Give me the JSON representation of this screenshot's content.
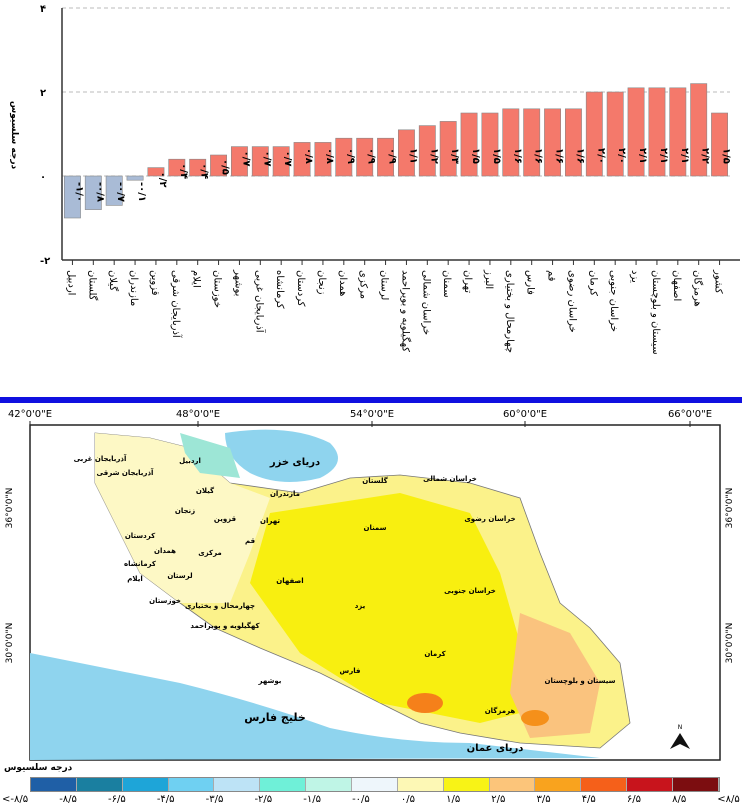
{
  "chart_data": {
    "type": "bar",
    "ylabel": "درجه سلسیوس",
    "ylim": [
      -2,
      4
    ],
    "yticks": [
      "۴",
      "۲",
      "۰",
      "-۲"
    ],
    "ytick_values": [
      4,
      2,
      0,
      -2
    ],
    "grid": "horizontal dashed",
    "colors": {
      "positive": "#f4796b",
      "negative": "#a9bbd6"
    },
    "categories": [
      "اردبیل",
      "گلستان",
      "گیلان",
      "مازندران",
      "قزوین",
      "آذربایجان شرقی",
      "ایلام",
      "خوزستان",
      "بوشهر",
      "آذربایجان غربی",
      "کرمانشاه",
      "کردستان",
      "زنجان",
      "همدان",
      "مرکزی",
      "لرستان",
      "کهگیلویه و بویراحمد",
      "خراسان شمالی",
      "سمنان",
      "تهران",
      "البرز",
      "چهارمحال و بختیاری",
      "فارس",
      "قم",
      "خراسان رضوی",
      "کرمان",
      "خراسان جنوبی",
      "یزد",
      "سیستان و بلوچستان",
      "اصفهان",
      "هرمزگان",
      "کشور"
    ],
    "values": [
      -1.0,
      -0.8,
      -0.7,
      -0.1,
      0.2,
      0.4,
      0.4,
      0.5,
      0.7,
      0.7,
      0.7,
      0.8,
      0.8,
      0.9,
      0.9,
      0.9,
      1.1,
      1.2,
      1.3,
      1.5,
      1.5,
      1.6,
      1.6,
      1.6,
      1.6,
      2.0,
      2.0,
      2.1,
      2.1,
      2.1,
      2.2,
      1.5
    ],
    "value_labels": [
      "-۱/۰",
      "-۰/۸",
      "-۰/۷",
      "-۰/۱",
      "۰/۲",
      "۰/۴",
      "۰/۴",
      "۰/۵",
      "۰/۷",
      "۰/۷",
      "۰/۷",
      "۰/۸",
      "۰/۸",
      "۰/۹",
      "۰/۹",
      "۰/۹",
      "۱/۱",
      "۱/۲",
      "۱/۳",
      "۱/۵",
      "۱/۵",
      "۱/۶",
      "۱/۶",
      "۱/۶",
      "۱/۶",
      "۲/۰",
      "۲/۰",
      "۲/۱",
      "۲/۱",
      "۲/۱",
      "۲/۲",
      "۱/۵"
    ]
  },
  "map": {
    "lon_labels": [
      "42°0'0\"E",
      "48°0'0\"E",
      "54°0'0\"E",
      "60°0'0\"E",
      "66°0'0\"E"
    ],
    "lat_labels": [
      "36°0'0\"N",
      "30°0'0\"N"
    ],
    "seas": {
      "caspian": "دریای خزر",
      "gulf": "خلیج فارس",
      "oman": "دریای عمان"
    },
    "north_label": "N",
    "provinces": [
      {
        "name": "آذربایجان غربی"
      },
      {
        "name": "آذربایجان شرقی"
      },
      {
        "name": "اردبیل"
      },
      {
        "name": "گیلان"
      },
      {
        "name": "زنجان"
      },
      {
        "name": "قزوین"
      },
      {
        "name": "مازندران"
      },
      {
        "name": "گلستان"
      },
      {
        "name": "خراسان شمالی"
      },
      {
        "name": "خراسان رضوی"
      },
      {
        "name": "سمنان"
      },
      {
        "name": "تهران"
      },
      {
        "name": "کردستان"
      },
      {
        "name": "همدان"
      },
      {
        "name": "کرمانشاه"
      },
      {
        "name": "مرکزی"
      },
      {
        "name": "قم"
      },
      {
        "name": "ایلام"
      },
      {
        "name": "لرستان"
      },
      {
        "name": "اصفهان"
      },
      {
        "name": "خراسان جنوبی"
      },
      {
        "name": "چهارمحال و بختیاری"
      },
      {
        "name": "یزد"
      },
      {
        "name": "کهگیلویه و بویراحمد"
      },
      {
        "name": "کرمان"
      },
      {
        "name": "سیستان و بلوچستان"
      },
      {
        "name": "بوشهر"
      },
      {
        "name": "فارس"
      },
      {
        "name": "هرمزگان"
      },
      {
        "name": "خوزستان"
      }
    ]
  },
  "legend": {
    "title": "درجه سلسیوس",
    "colors": [
      "#1f5fa6",
      "#1a7fa0",
      "#1ea5d8",
      "#6fd0f2",
      "#bde3f6",
      "#6ff0d8",
      "#bff5e6",
      "#eef6fb",
      "#fdf8b5",
      "#f8f316",
      "#fcc57a",
      "#f9a31e",
      "#f5601a",
      "#c8141c",
      "#7c0d10"
    ],
    "labels": [
      "<-۸/۵",
      "-۸/۵",
      "-۶/۵",
      "-۴/۵",
      "-۳/۵",
      "-۲/۵",
      "-۱/۵",
      "-۰/۵",
      "۰/۵",
      "۱/۵",
      "۲/۵",
      "۳/۵",
      "۴/۵",
      "۶/۵",
      "۸/۵",
      "<۸/۵"
    ]
  }
}
